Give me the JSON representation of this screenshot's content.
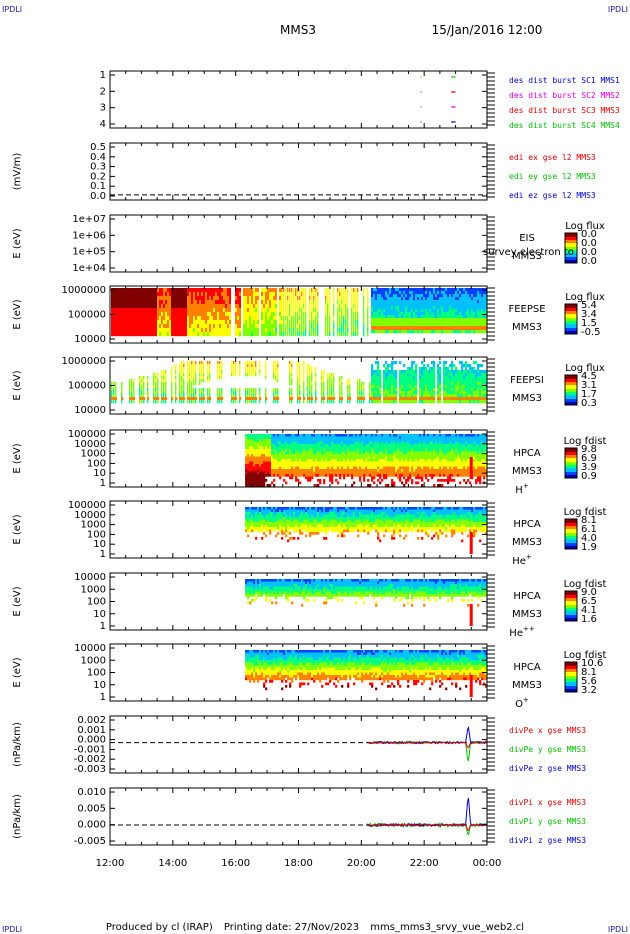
{
  "header": {
    "corner_left": "IPDLI",
    "corner_right": "IPDLI",
    "spacecraft": "MMS3",
    "datetime": "15/Jan/2016 12:00"
  },
  "footer": {
    "corner_left": "IPDLI",
    "corner_right": "IPDLI",
    "produced_by": "Produced by cl (IRAP)",
    "printing_date": "Printing date: 27/Nov/2023",
    "filename": "mms_mms3_srvy_vue_web2.cl"
  },
  "colors": {
    "blue": "#0000c8",
    "magenta": "#e000e0",
    "red": "#e00000",
    "green": "#00c000",
    "colormap": [
      "#800000",
      "#ff0000",
      "#ff8000",
      "#ffff00",
      "#80ff00",
      "#00ff80",
      "#00c0ff",
      "#0040ff",
      "#0000a0"
    ]
  },
  "chart_data": [
    {
      "id": "burst",
      "type": "line",
      "yticks": [
        "1",
        "2",
        "3",
        "4"
      ],
      "ylim": [
        0.6,
        4.4
      ],
      "legend": [
        "des dist burst SC1 MMS1",
        "des dist burst SC2 MMS2",
        "des dist burst SC3 MMS3",
        "des dist burst SC4 MMS4"
      ],
      "series": [
        {
          "name": "des dist burst SC1 MMS1",
          "y": 1,
          "segments": [
            [
              22.86,
              23.0
            ]
          ]
        },
        {
          "name": "des dist burst SC2 MMS2",
          "y": 2,
          "segments": [
            [
              22.86,
              23.0
            ]
          ]
        },
        {
          "name": "des dist burst SC3 MMS3",
          "y": 3,
          "segments": [
            [
              22.86,
              23.0
            ]
          ]
        },
        {
          "name": "des dist burst SC4 MMS4",
          "y": 4,
          "segments": [
            [
              22.86,
              23.0
            ]
          ]
        }
      ]
    },
    {
      "id": "edi",
      "type": "line",
      "ylabel": "(mV/m)",
      "yticks": [
        "0.5",
        "0.4",
        "0.3",
        "0.2",
        "0.1",
        "0.0"
      ],
      "ylim": [
        -0.05,
        0.5
      ],
      "legend": [
        "edi ex gse l2 MMS3",
        "edi ey gse l2 MMS3",
        "edi ez gse l2 MMS3"
      ],
      "zero_line": true
    },
    {
      "id": "eis",
      "type": "heatmap",
      "ylabel": "E (eV)",
      "yticks": [
        "1e+07",
        "1e+06",
        "1e+05",
        "1e+04"
      ],
      "right_labels": [
        "EIS",
        "MMS3"
      ],
      "overlay_text": "survey electron to",
      "colorbar_title": "Log flux",
      "colorbar_ticks": [
        "0.0",
        "0.0",
        "0.0",
        "0.0"
      ]
    },
    {
      "id": "feepse",
      "type": "heatmap",
      "ylabel": "E (eV)",
      "yticks": [
        "1000000",
        "100000",
        "10000"
      ],
      "right_labels": [
        "FEEPSE",
        "MMS3"
      ],
      "colorbar_title": "Log flux",
      "colorbar_ticks": [
        "5.4",
        "3.4",
        "1.5",
        "-0.5"
      ]
    },
    {
      "id": "feepsi",
      "type": "heatmap",
      "ylabel": "E (eV)",
      "yticks": [
        "1000000",
        "100000",
        "10000"
      ],
      "right_labels": [
        "FEEPSI",
        "MMS3"
      ],
      "colorbar_title": "Log flux",
      "colorbar_ticks": [
        "4.5",
        "3.1",
        "1.7",
        "0.3"
      ]
    },
    {
      "id": "hpca_h",
      "type": "heatmap",
      "ylabel": "E (eV)",
      "yticks": [
        "100000",
        "10000",
        "1000",
        "100",
        "10",
        "1"
      ],
      "right_labels": [
        "HPCA",
        "MMS3"
      ],
      "ion": "H",
      "ion_charge": "+",
      "colorbar_title": "Log fdist",
      "colorbar_ticks": [
        "9.8",
        "6.9",
        "3.9",
        "0.9"
      ]
    },
    {
      "id": "hpca_he1",
      "type": "heatmap",
      "ylabel": "E (eV)",
      "yticks": [
        "100000",
        "10000",
        "1000",
        "100",
        "10",
        "1"
      ],
      "right_labels": [
        "HPCA",
        "MMS3"
      ],
      "ion": "He",
      "ion_charge": "+",
      "colorbar_title": "Log fdist",
      "colorbar_ticks": [
        "8.1",
        "6.1",
        "4.0",
        "1.9"
      ]
    },
    {
      "id": "hpca_he2",
      "type": "heatmap",
      "ylabel": "E (eV)",
      "yticks": [
        "10000",
        "1000",
        "100",
        "10",
        "1"
      ],
      "right_labels": [
        "HPCA",
        "MMS3"
      ],
      "ion": "He",
      "ion_charge": "++",
      "colorbar_title": "Log fdist",
      "colorbar_ticks": [
        "9.0",
        "6.5",
        "4.1",
        "1.6"
      ]
    },
    {
      "id": "hpca_o",
      "type": "heatmap",
      "ylabel": "E (eV)",
      "yticks": [
        "10000",
        "1000",
        "100",
        "10",
        "1"
      ],
      "right_labels": [
        "HPCA",
        "MMS3"
      ],
      "ion": "O",
      "ion_charge": "+",
      "colorbar_title": "Log fdist",
      "colorbar_ticks": [
        "10.6",
        "8.1",
        "5.6",
        "3.2"
      ]
    },
    {
      "id": "divpe",
      "type": "line",
      "ylabel": "(nPa/km)",
      "yticks": [
        "0.002",
        "0.001",
        "0.000",
        "-0.001",
        "-0.002",
        "-0.003"
      ],
      "ylim": [
        -0.0032,
        0.0028
      ],
      "legend": [
        "divPe x gse MMS3",
        "divPe y gse MMS3",
        "divPe z gse MMS3"
      ],
      "zero_line": true,
      "data_start_hour": 20.2
    },
    {
      "id": "divpi",
      "type": "line",
      "ylabel": "(nPa/km)",
      "yticks": [
        "0.010",
        "0.005",
        "0.000",
        "-0.005"
      ],
      "ylim": [
        -0.0065,
        0.012
      ],
      "legend": [
        "divPi x gse MMS3",
        "divPi y gse MMS3",
        "divPi z gse MMS3"
      ],
      "zero_line": true,
      "data_start_hour": 20.2
    }
  ],
  "xaxis": {
    "ticks": [
      "12:00",
      "14:00",
      "16:00",
      "18:00",
      "20:00",
      "22:00",
      "00:00"
    ],
    "range_hours": [
      12,
      24
    ]
  }
}
